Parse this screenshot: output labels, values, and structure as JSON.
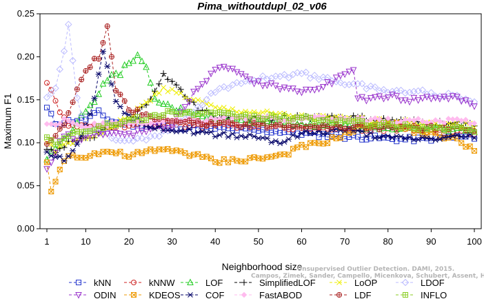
{
  "chart_data": {
    "type": "line",
    "title": "Pima_withoutdupl_02_v06",
    "xlabel": "Neighborhood size",
    "ylabel": "Maximum F1",
    "xlim": [
      1,
      100
    ],
    "ylim": [
      0,
      0.25
    ],
    "xticks": [
      1,
      10,
      20,
      30,
      40,
      50,
      60,
      70,
      80,
      90,
      100
    ],
    "yticks": [
      "0.00",
      "0.05",
      "0.10",
      "0.15",
      "0.20",
      "0.25"
    ],
    "grid": false,
    "legend_position": "bottom",
    "watermark": [
      "Unsupervised Outlier Detection. DAMI, 2015.",
      "Campos, Zimek, Sander, Campello, Micenkova, Schubert, Assent, Houle"
    ],
    "series": [
      {
        "name": "kNN",
        "color": "#2233cc",
        "marker": "square",
        "anchors": [
          [
            1,
            0.14
          ],
          [
            3,
            0.123
          ],
          [
            6,
            0.125
          ],
          [
            10,
            0.128
          ],
          [
            13,
            0.135
          ],
          [
            16,
            0.125
          ],
          [
            22,
            0.12
          ],
          [
            30,
            0.119
          ],
          [
            40,
            0.117
          ],
          [
            50,
            0.114
          ],
          [
            56,
            0.113
          ],
          [
            62,
            0.11
          ],
          [
            70,
            0.107
          ],
          [
            76,
            0.106
          ],
          [
            82,
            0.104
          ],
          [
            88,
            0.104
          ],
          [
            94,
            0.106
          ],
          [
            100,
            0.107
          ]
        ]
      },
      {
        "name": "kNNW",
        "color": "#cc2222",
        "marker": "circle",
        "anchors": [
          [
            1,
            0.172
          ],
          [
            2,
            0.162
          ],
          [
            3,
            0.15
          ],
          [
            4,
            0.135
          ],
          [
            6,
            0.12
          ],
          [
            10,
            0.118
          ],
          [
            15,
            0.12
          ],
          [
            20,
            0.12
          ],
          [
            30,
            0.121
          ],
          [
            40,
            0.12
          ],
          [
            50,
            0.12
          ],
          [
            60,
            0.118
          ],
          [
            70,
            0.117
          ],
          [
            80,
            0.116
          ],
          [
            90,
            0.114
          ],
          [
            100,
            0.112
          ]
        ]
      },
      {
        "name": "LOF",
        "color": "#22cc22",
        "marker": "triangle-up",
        "anchors": [
          [
            1,
            0.08
          ],
          [
            3,
            0.095
          ],
          [
            6,
            0.11
          ],
          [
            9,
            0.13
          ],
          [
            12,
            0.15
          ],
          [
            15,
            0.175
          ],
          [
            18,
            0.18
          ],
          [
            20,
            0.195
          ],
          [
            22,
            0.2
          ],
          [
            24,
            0.185
          ],
          [
            26,
            0.15
          ],
          [
            30,
            0.14
          ],
          [
            35,
            0.135
          ],
          [
            40,
            0.128
          ],
          [
            50,
            0.125
          ],
          [
            60,
            0.122
          ],
          [
            70,
            0.12
          ],
          [
            80,
            0.117
          ],
          [
            90,
            0.116
          ],
          [
            100,
            0.115
          ]
        ]
      },
      {
        "name": "SimplifiedLOF",
        "color": "#000000",
        "marker": "plus",
        "anchors": [
          [
            1,
            0.095
          ],
          [
            3,
            0.09
          ],
          [
            6,
            0.1
          ],
          [
            10,
            0.103
          ],
          [
            15,
            0.115
          ],
          [
            20,
            0.125
          ],
          [
            24,
            0.145
          ],
          [
            27,
            0.17
          ],
          [
            28,
            0.178
          ],
          [
            30,
            0.17
          ],
          [
            33,
            0.155
          ],
          [
            36,
            0.14
          ],
          [
            40,
            0.13
          ],
          [
            50,
            0.128
          ],
          [
            60,
            0.13
          ],
          [
            70,
            0.13
          ],
          [
            80,
            0.126
          ],
          [
            90,
            0.123
          ],
          [
            100,
            0.122
          ]
        ]
      },
      {
        "name": "LoOP",
        "color": "#eeee00",
        "marker": "cross",
        "anchors": [
          [
            1,
            0.1
          ],
          [
            3,
            0.09
          ],
          [
            6,
            0.1
          ],
          [
            10,
            0.105
          ],
          [
            15,
            0.115
          ],
          [
            20,
            0.13
          ],
          [
            25,
            0.15
          ],
          [
            28,
            0.165
          ],
          [
            30,
            0.16
          ],
          [
            35,
            0.15
          ],
          [
            40,
            0.14
          ],
          [
            50,
            0.135
          ],
          [
            60,
            0.13
          ],
          [
            70,
            0.128
          ],
          [
            80,
            0.125
          ],
          [
            90,
            0.122
          ],
          [
            100,
            0.12
          ]
        ]
      },
      {
        "name": "LDOF",
        "color": "#bbbbff",
        "marker": "diamond",
        "anchors": [
          [
            1,
            0.15
          ],
          [
            3,
            0.165
          ],
          [
            5,
            0.207
          ],
          [
            6,
            0.24
          ],
          [
            8,
            0.15
          ],
          [
            10,
            0.12
          ],
          [
            15,
            0.11
          ],
          [
            20,
            0.1
          ],
          [
            30,
            0.115
          ],
          [
            40,
            0.16
          ],
          [
            50,
            0.175
          ],
          [
            60,
            0.18
          ],
          [
            70,
            0.17
          ],
          [
            75,
            0.165
          ],
          [
            80,
            0.16
          ],
          [
            85,
            0.16
          ],
          [
            90,
            0.158
          ],
          [
            100,
            0.15
          ]
        ]
      },
      {
        "name": "ODIN",
        "color": "#9933cc",
        "marker": "triangle-down",
        "anchors": [
          [
            1,
            0.07
          ],
          [
            3,
            0.09
          ],
          [
            5,
            0.11
          ],
          [
            8,
            0.105
          ],
          [
            12,
            0.11
          ],
          [
            20,
            0.11
          ],
          [
            30,
            0.12
          ],
          [
            36,
            0.165
          ],
          [
            40,
            0.183
          ],
          [
            43,
            0.188
          ],
          [
            47,
            0.175
          ],
          [
            50,
            0.17
          ],
          [
            55,
            0.165
          ],
          [
            60,
            0.16
          ],
          [
            65,
            0.165
          ],
          [
            70,
            0.18
          ],
          [
            72,
            0.182
          ],
          [
            73,
            0.15
          ],
          [
            80,
            0.155
          ],
          [
            85,
            0.15
          ],
          [
            90,
            0.153
          ],
          [
            95,
            0.153
          ],
          [
            100,
            0.145
          ]
        ]
      },
      {
        "name": "KDEOS",
        "color": "#ee9900",
        "marker": "square-x",
        "anchors": [
          [
            1,
            0.075
          ],
          [
            2,
            0.043
          ],
          [
            4,
            0.07
          ],
          [
            6,
            0.085
          ],
          [
            10,
            0.085
          ],
          [
            15,
            0.09
          ],
          [
            20,
            0.085
          ],
          [
            25,
            0.09
          ],
          [
            30,
            0.092
          ],
          [
            36,
            0.085
          ],
          [
            40,
            0.078
          ],
          [
            50,
            0.082
          ],
          [
            55,
            0.085
          ],
          [
            60,
            0.095
          ],
          [
            65,
            0.1
          ],
          [
            70,
            0.11
          ],
          [
            75,
            0.12
          ],
          [
            80,
            0.125
          ],
          [
            85,
            0.115
          ],
          [
            90,
            0.11
          ],
          [
            95,
            0.105
          ],
          [
            100,
            0.093
          ]
        ]
      },
      {
        "name": "COF",
        "color": "#000066",
        "marker": "star",
        "anchors": [
          [
            1,
            0.09
          ],
          [
            3,
            0.085
          ],
          [
            5,
            0.08
          ],
          [
            8,
            0.1
          ],
          [
            10,
            0.12
          ],
          [
            12,
            0.15
          ],
          [
            14,
            0.205
          ],
          [
            15,
            0.19
          ],
          [
            17,
            0.15
          ],
          [
            20,
            0.13
          ],
          [
            25,
            0.12
          ],
          [
            30,
            0.115
          ],
          [
            40,
            0.11
          ],
          [
            50,
            0.107
          ],
          [
            55,
            0.1
          ],
          [
            60,
            0.11
          ],
          [
            70,
            0.115
          ],
          [
            80,
            0.105
          ],
          [
            90,
            0.104
          ],
          [
            100,
            0.108
          ]
        ]
      },
      {
        "name": "FastABOD",
        "color": "#ffbbee",
        "marker": "diamond-filled",
        "anchors": [
          [
            1,
            0.12
          ],
          [
            5,
            0.125
          ],
          [
            10,
            0.12
          ],
          [
            20,
            0.122
          ],
          [
            30,
            0.125
          ],
          [
            40,
            0.127
          ],
          [
            50,
            0.128
          ],
          [
            60,
            0.128
          ],
          [
            70,
            0.127
          ],
          [
            80,
            0.126
          ],
          [
            90,
            0.125
          ],
          [
            100,
            0.125
          ]
        ]
      },
      {
        "name": "LDF",
        "color": "#aa2222",
        "marker": "circle-plus",
        "anchors": [
          [
            1,
            0.1
          ],
          [
            3,
            0.11
          ],
          [
            5,
            0.12
          ],
          [
            7,
            0.15
          ],
          [
            9,
            0.175
          ],
          [
            11,
            0.19
          ],
          [
            13,
            0.2
          ],
          [
            15,
            0.238
          ],
          [
            17,
            0.16
          ],
          [
            20,
            0.14
          ],
          [
            25,
            0.13
          ],
          [
            30,
            0.125
          ],
          [
            40,
            0.122
          ],
          [
            50,
            0.12
          ],
          [
            60,
            0.12
          ],
          [
            70,
            0.119
          ],
          [
            80,
            0.118
          ],
          [
            90,
            0.117
          ],
          [
            100,
            0.116
          ]
        ]
      },
      {
        "name": "INFLO",
        "color": "#88cc22",
        "marker": "square-cross",
        "anchors": [
          [
            1,
            0.105
          ],
          [
            3,
            0.1
          ],
          [
            6,
            0.11
          ],
          [
            10,
            0.115
          ],
          [
            15,
            0.12
          ],
          [
            20,
            0.125
          ],
          [
            30,
            0.135
          ],
          [
            40,
            0.133
          ],
          [
            50,
            0.13
          ],
          [
            60,
            0.128
          ],
          [
            70,
            0.125
          ],
          [
            80,
            0.12
          ],
          [
            90,
            0.117
          ],
          [
            100,
            0.115
          ]
        ]
      }
    ]
  }
}
